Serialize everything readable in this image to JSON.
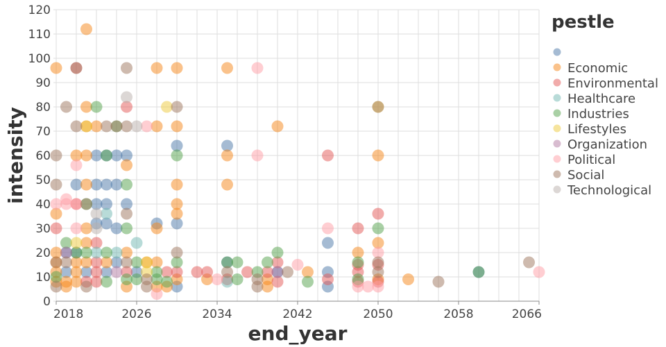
{
  "chart_data": {
    "type": "scatter",
    "xlabel": "end_year",
    "ylabel": "intensity",
    "xlim": [
      2018,
      2066
    ],
    "ylim": [
      0,
      120
    ],
    "x_ticks": [
      2018,
      2026,
      2034,
      2042,
      2050,
      2058,
      2066
    ],
    "y_ticks": [
      0,
      10,
      20,
      30,
      40,
      50,
      60,
      70,
      80,
      90,
      100,
      110,
      120
    ],
    "grid": true,
    "legend": {
      "title": "pestle",
      "placement": "right",
      "entries": [
        "",
        "Economic",
        "Environmental",
        "Healthcare",
        "Industries",
        "Lifestyles",
        "Organization",
        "Political",
        "Social",
        "Technological"
      ]
    },
    "colors": {
      "": "#4c78a8",
      "Economic": "#f58518",
      "Environmental": "#e45756",
      "Healthcare": "#72b7b2",
      "Industries": "#54a24b",
      "Lifestyles": "#eeca3b",
      "Organization": "#b279a2",
      "Political": "#ff9da6",
      "Social": "#9d755d",
      "Technological": "#bab0ac"
    },
    "points": [
      [
        2019,
        20,
        ""
      ],
      [
        2019,
        12,
        ""
      ],
      [
        2020,
        48,
        ""
      ],
      [
        2020,
        20,
        ""
      ],
      [
        2021,
        12,
        ""
      ],
      [
        2022,
        60,
        ""
      ],
      [
        2022,
        48,
        ""
      ],
      [
        2022,
        40,
        ""
      ],
      [
        2022,
        32,
        ""
      ],
      [
        2023,
        60,
        ""
      ],
      [
        2023,
        48,
        ""
      ],
      [
        2023,
        40,
        ""
      ],
      [
        2023,
        32,
        ""
      ],
      [
        2023,
        12,
        ""
      ],
      [
        2024,
        60,
        ""
      ],
      [
        2024,
        48,
        ""
      ],
      [
        2024,
        30,
        ""
      ],
      [
        2024,
        16,
        ""
      ],
      [
        2025,
        60,
        ""
      ],
      [
        2025,
        40,
        ""
      ],
      [
        2026,
        12,
        ""
      ],
      [
        2028,
        32,
        ""
      ],
      [
        2030,
        64,
        ""
      ],
      [
        2030,
        32,
        ""
      ],
      [
        2030,
        6,
        ""
      ],
      [
        2035,
        64,
        ""
      ],
      [
        2035,
        16,
        ""
      ],
      [
        2040,
        12,
        ""
      ],
      [
        2045,
        24,
        ""
      ],
      [
        2045,
        12,
        ""
      ],
      [
        2045,
        6,
        ""
      ],
      [
        2060,
        12,
        ""
      ],
      [
        2018,
        96,
        "Economic"
      ],
      [
        2018,
        36,
        "Economic"
      ],
      [
        2018,
        20,
        "Economic"
      ],
      [
        2018,
        16,
        "Economic"
      ],
      [
        2018,
        12,
        "Economic"
      ],
      [
        2018,
        8,
        "Economic"
      ],
      [
        2019,
        8,
        "Economic"
      ],
      [
        2019,
        6,
        "Economic"
      ],
      [
        2020,
        60,
        "Economic"
      ],
      [
        2020,
        16,
        "Economic"
      ],
      [
        2020,
        12,
        "Economic"
      ],
      [
        2020,
        8,
        "Economic"
      ],
      [
        2021,
        112,
        "Economic"
      ],
      [
        2021,
        80,
        "Economic"
      ],
      [
        2021,
        72,
        "Economic"
      ],
      [
        2021,
        60,
        "Economic"
      ],
      [
        2021,
        48,
        "Economic"
      ],
      [
        2021,
        30,
        "Economic"
      ],
      [
        2021,
        24,
        "Economic"
      ],
      [
        2021,
        16,
        "Economic"
      ],
      [
        2022,
        72,
        "Economic"
      ],
      [
        2023,
        16,
        "Economic"
      ],
      [
        2025,
        56,
        "Economic"
      ],
      [
        2025,
        20,
        "Economic"
      ],
      [
        2025,
        6,
        "Economic"
      ],
      [
        2027,
        16,
        "Economic"
      ],
      [
        2028,
        96,
        "Economic"
      ],
      [
        2028,
        72,
        "Economic"
      ],
      [
        2028,
        30,
        "Economic"
      ],
      [
        2028,
        16,
        "Economic"
      ],
      [
        2028,
        6,
        "Economic"
      ],
      [
        2029,
        6,
        "Economic"
      ],
      [
        2030,
        96,
        "Economic"
      ],
      [
        2030,
        72,
        "Economic"
      ],
      [
        2030,
        48,
        "Economic"
      ],
      [
        2030,
        40,
        "Economic"
      ],
      [
        2030,
        36,
        "Economic"
      ],
      [
        2030,
        9,
        "Economic"
      ],
      [
        2033,
        9,
        "Economic"
      ],
      [
        2035,
        96,
        "Economic"
      ],
      [
        2035,
        60,
        "Economic"
      ],
      [
        2035,
        48,
        "Economic"
      ],
      [
        2039,
        9,
        "Economic"
      ],
      [
        2039,
        6,
        "Economic"
      ],
      [
        2040,
        72,
        "Economic"
      ],
      [
        2043,
        12,
        "Economic"
      ],
      [
        2048,
        20,
        "Economic"
      ],
      [
        2050,
        60,
        "Economic"
      ],
      [
        2050,
        24,
        "Economic"
      ],
      [
        2050,
        9,
        "Economic"
      ],
      [
        2053,
        9,
        "Economic"
      ],
      [
        2018,
        30,
        "Environmental"
      ],
      [
        2020,
        96,
        "Environmental"
      ],
      [
        2020,
        40,
        "Environmental"
      ],
      [
        2021,
        8,
        "Environmental"
      ],
      [
        2022,
        24,
        "Environmental"
      ],
      [
        2022,
        16,
        "Environmental"
      ],
      [
        2022,
        12,
        "Environmental"
      ],
      [
        2022,
        8,
        "Environmental"
      ],
      [
        2025,
        80,
        "Environmental"
      ],
      [
        2025,
        12,
        "Environmental"
      ],
      [
        2029,
        12,
        "Environmental"
      ],
      [
        2030,
        12,
        "Environmental"
      ],
      [
        2032,
        12,
        "Environmental"
      ],
      [
        2033,
        12,
        "Environmental"
      ],
      [
        2035,
        9,
        "Environmental"
      ],
      [
        2037,
        12,
        "Environmental"
      ],
      [
        2039,
        12,
        "Environmental"
      ],
      [
        2040,
        16,
        "Environmental"
      ],
      [
        2040,
        8,
        "Environmental"
      ],
      [
        2045,
        60,
        "Environmental"
      ],
      [
        2045,
        9,
        "Environmental"
      ],
      [
        2048,
        30,
        "Environmental"
      ],
      [
        2048,
        15,
        "Environmental"
      ],
      [
        2048,
        12,
        "Environmental"
      ],
      [
        2048,
        8,
        "Environmental"
      ],
      [
        2050,
        36,
        "Environmental"
      ],
      [
        2050,
        15,
        "Environmental"
      ],
      [
        2050,
        8,
        "Environmental"
      ],
      [
        2022,
        20,
        "Healthcare"
      ],
      [
        2023,
        36,
        "Healthcare"
      ],
      [
        2024,
        20,
        "Healthcare"
      ],
      [
        2026,
        24,
        "Healthcare"
      ],
      [
        2035,
        8,
        "Healthcare"
      ],
      [
        2018,
        10,
        "Industries"
      ],
      [
        2019,
        24,
        "Industries"
      ],
      [
        2020,
        20,
        "Industries"
      ],
      [
        2021,
        40,
        "Industries"
      ],
      [
        2021,
        20,
        "Industries"
      ],
      [
        2022,
        80,
        "Industries"
      ],
      [
        2023,
        60,
        "Industries"
      ],
      [
        2023,
        20,
        "Industries"
      ],
      [
        2023,
        8,
        "Industries"
      ],
      [
        2024,
        72,
        "Industries"
      ],
      [
        2025,
        48,
        "Industries"
      ],
      [
        2025,
        30,
        "Industries"
      ],
      [
        2025,
        9,
        "Industries"
      ],
      [
        2026,
        16,
        "Industries"
      ],
      [
        2026,
        9,
        "Industries"
      ],
      [
        2028,
        12,
        "Industries"
      ],
      [
        2028,
        9,
        "Industries"
      ],
      [
        2029,
        8,
        "Industries"
      ],
      [
        2030,
        60,
        "Industries"
      ],
      [
        2030,
        16,
        "Industries"
      ],
      [
        2035,
        16,
        "Industries"
      ],
      [
        2036,
        16,
        "Industries"
      ],
      [
        2036,
        9,
        "Industries"
      ],
      [
        2038,
        12,
        "Industries"
      ],
      [
        2039,
        16,
        "Industries"
      ],
      [
        2040,
        20,
        "Industries"
      ],
      [
        2043,
        8,
        "Industries"
      ],
      [
        2048,
        16,
        "Industries"
      ],
      [
        2048,
        9,
        "Industries"
      ],
      [
        2050,
        30,
        "Industries"
      ],
      [
        2060,
        12,
        "Industries"
      ],
      [
        2020,
        24,
        "Lifestyles"
      ],
      [
        2021,
        72,
        "Lifestyles"
      ],
      [
        2027,
        16,
        "Lifestyles"
      ],
      [
        2027,
        12,
        "Lifestyles"
      ],
      [
        2029,
        80,
        "Lifestyles"
      ],
      [
        2050,
        80,
        "Lifestyles"
      ],
      [
        2019,
        20,
        "Organization"
      ],
      [
        2024,
        12,
        "Organization"
      ],
      [
        2040,
        12,
        "Organization"
      ],
      [
        2018,
        40,
        "Political"
      ],
      [
        2019,
        42,
        "Political"
      ],
      [
        2019,
        40,
        "Political"
      ],
      [
        2020,
        56,
        "Political"
      ],
      [
        2020,
        40,
        "Political"
      ],
      [
        2020,
        30,
        "Political"
      ],
      [
        2027,
        72,
        "Political"
      ],
      [
        2028,
        3,
        "Political"
      ],
      [
        2034,
        9,
        "Political"
      ],
      [
        2038,
        96,
        "Political"
      ],
      [
        2038,
        60,
        "Political"
      ],
      [
        2042,
        15,
        "Political"
      ],
      [
        2045,
        30,
        "Political"
      ],
      [
        2048,
        6,
        "Political"
      ],
      [
        2049,
        6,
        "Political"
      ],
      [
        2050,
        20,
        "Political"
      ],
      [
        2050,
        6,
        "Political"
      ],
      [
        2066,
        12,
        "Political"
      ],
      [
        2018,
        60,
        "Social"
      ],
      [
        2018,
        48,
        "Social"
      ],
      [
        2018,
        16,
        "Social"
      ],
      [
        2018,
        6,
        "Social"
      ],
      [
        2019,
        80,
        "Social"
      ],
      [
        2019,
        16,
        "Social"
      ],
      [
        2020,
        96,
        "Social"
      ],
      [
        2020,
        72,
        "Social"
      ],
      [
        2021,
        40,
        "Social"
      ],
      [
        2021,
        6,
        "Social"
      ],
      [
        2023,
        72,
        "Social"
      ],
      [
        2024,
        72,
        "Social"
      ],
      [
        2025,
        96,
        "Social"
      ],
      [
        2025,
        72,
        "Social"
      ],
      [
        2025,
        36,
        "Social"
      ],
      [
        2025,
        16,
        "Social"
      ],
      [
        2027,
        9,
        "Social"
      ],
      [
        2027,
        6,
        "Social"
      ],
      [
        2030,
        80,
        "Social"
      ],
      [
        2030,
        20,
        "Social"
      ],
      [
        2035,
        12,
        "Social"
      ],
      [
        2038,
        9,
        "Social"
      ],
      [
        2038,
        6,
        "Social"
      ],
      [
        2041,
        12,
        "Social"
      ],
      [
        2050,
        80,
        "Social"
      ],
      [
        2050,
        16,
        "Social"
      ],
      [
        2050,
        12,
        "Social"
      ],
      [
        2056,
        8,
        "Social"
      ],
      [
        2065,
        16,
        "Social"
      ],
      [
        2022,
        36,
        "Technological"
      ],
      [
        2022,
        30,
        "Technological"
      ],
      [
        2025,
        84,
        "Technological"
      ],
      [
        2026,
        72,
        "Technological"
      ]
    ]
  }
}
